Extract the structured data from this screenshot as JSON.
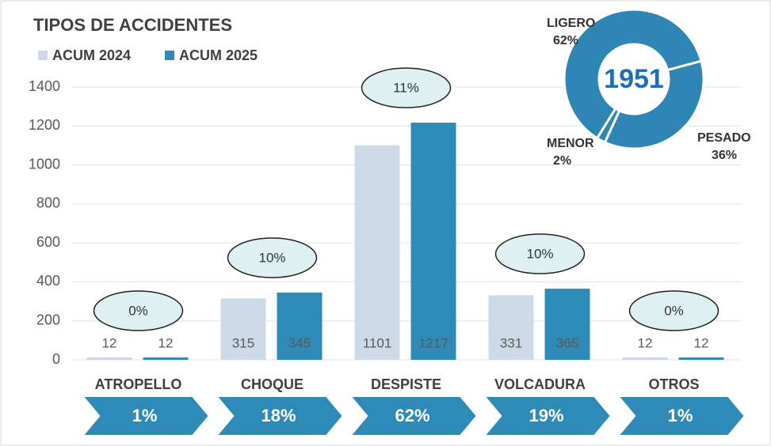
{
  "chart_data": [
    {
      "type": "bar",
      "title": "TIPOS DE ACCIDENTES",
      "categories": [
        "ATROPELLO",
        "CHOQUE",
        "DESPISTE",
        "VOLCADURA",
        "OTROS"
      ],
      "series": [
        {
          "name": "ACUM 2024",
          "color": "#cdd9e6",
          "values": [
            12,
            315,
            1101,
            331,
            12
          ]
        },
        {
          "name": "ACUM 2025",
          "color": "#2e8bb8",
          "values": [
            12,
            345,
            1217,
            365,
            12
          ]
        }
      ],
      "growth_labels": [
        "0%",
        "10%",
        "11%",
        "10%",
        "0%"
      ],
      "share_labels": [
        "1%",
        "18%",
        "62%",
        "19%",
        "1%"
      ],
      "ylim": [
        0,
        1400
      ],
      "yticks": [
        0,
        200,
        400,
        600,
        800,
        1000,
        1200,
        1400
      ],
      "grid": true,
      "legend": "top-left"
    },
    {
      "type": "pie",
      "center_label": "1951",
      "categories": [
        "LIGERO",
        "PESADO",
        "MENOR"
      ],
      "values": [
        62,
        36,
        2
      ],
      "value_labels": [
        "62%",
        "36%",
        "2%"
      ],
      "color": "#2f86b5"
    }
  ]
}
